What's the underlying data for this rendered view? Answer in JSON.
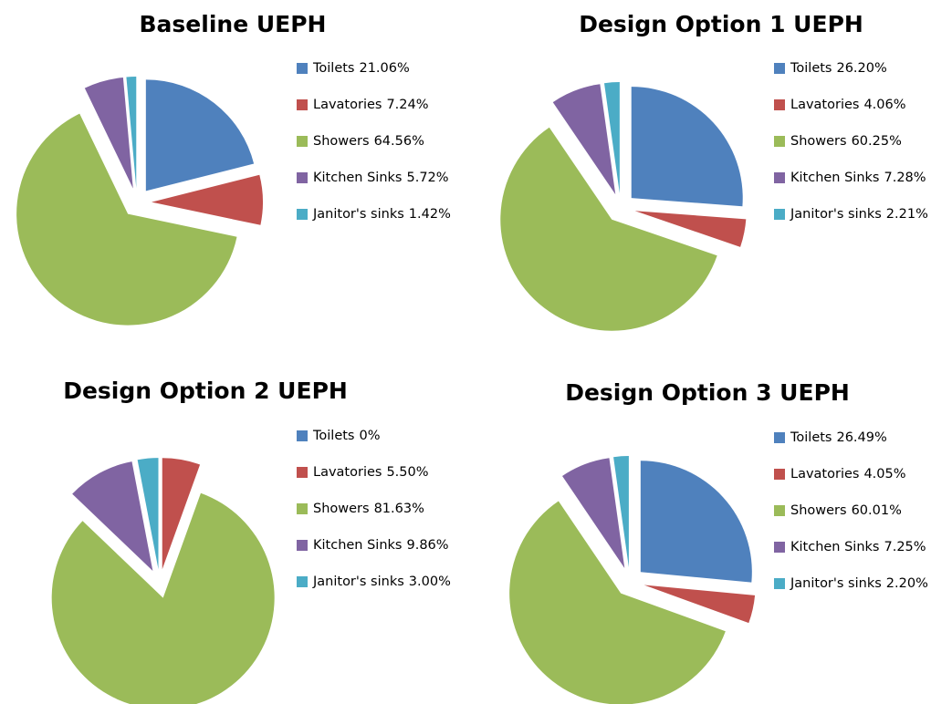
{
  "chart_data": [
    {
      "type": "pie",
      "title": "Baseline UEPH",
      "categories": [
        "Toilets",
        "Lavatories",
        "Showers",
        "Kitchen Sinks",
        "Janitor's sinks"
      ],
      "values": [
        21.06,
        7.24,
        64.56,
        5.72,
        1.42
      ],
      "value_labels": [
        "21.06%",
        "7.24%",
        "64.56%",
        "5.72%",
        "1.42%"
      ],
      "colors": [
        "#4f81bd",
        "#c0504d",
        "#9bbb59",
        "#8064a2",
        "#4bacc6"
      ]
    },
    {
      "type": "pie",
      "title": "Design Option 1 UEPH",
      "categories": [
        "Toilets",
        "Lavatories",
        "Showers",
        "Kitchen Sinks",
        "Janitor's sinks"
      ],
      "values": [
        26.2,
        4.06,
        60.25,
        7.28,
        2.21
      ],
      "value_labels": [
        "26.20%",
        "4.06%",
        "60.25%",
        "7.28%",
        "2.21%"
      ],
      "colors": [
        "#4f81bd",
        "#c0504d",
        "#9bbb59",
        "#8064a2",
        "#4bacc6"
      ]
    },
    {
      "type": "pie",
      "title": "Design Option 2 UEPH",
      "categories": [
        "Toilets",
        "Lavatories",
        "Showers",
        "Kitchen Sinks",
        "Janitor's sinks"
      ],
      "values": [
        0,
        5.5,
        81.63,
        9.86,
        3.0
      ],
      "value_labels": [
        "0%",
        "5.50%",
        "81.63%",
        "9.86%",
        "3.00%"
      ],
      "colors": [
        "#4f81bd",
        "#c0504d",
        "#9bbb59",
        "#8064a2",
        "#4bacc6"
      ]
    },
    {
      "type": "pie",
      "title": "Design Option 3 UEPH",
      "categories": [
        "Toilets",
        "Lavatories",
        "Showers",
        "Kitchen Sinks",
        "Janitor's sinks"
      ],
      "values": [
        26.49,
        4.05,
        60.01,
        7.25,
        2.2
      ],
      "value_labels": [
        "26.49%",
        "4.05%",
        "60.01%",
        "7.25%",
        "2.20%"
      ],
      "colors": [
        "#4f81bd",
        "#c0504d",
        "#9bbb59",
        "#8064a2",
        "#4bacc6"
      ]
    }
  ]
}
